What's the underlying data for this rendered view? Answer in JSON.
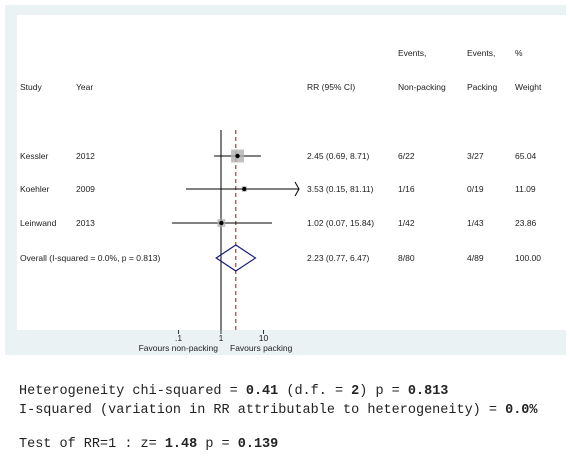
{
  "chart_data": {
    "type": "forest",
    "headers": {
      "study": "Study",
      "year": "Year",
      "ci": "RR (95% CI)",
      "events_a_top": "Events,",
      "events_a_bottom": "Non-packing",
      "events_b_top": "Events,",
      "events_b_bottom": "Packing",
      "weight_top": "%",
      "weight_bottom": "Weight"
    },
    "studies": [
      {
        "study": "Kessler",
        "year": "2012",
        "rr": 2.45,
        "lo": 0.69,
        "hi": 8.71,
        "ci_text": "2.45 (0.69, 8.71)",
        "events_nonpacking": "6/22",
        "events_packing": "3/27",
        "weight": "65.04"
      },
      {
        "study": "Koehler",
        "year": "2009",
        "rr": 3.53,
        "lo": 0.15,
        "hi": 81.11,
        "ci_text": "3.53 (0.15, 81.11)",
        "events_nonpacking": "1/16",
        "events_packing": "0/19",
        "weight": "11.09",
        "clipped_high": true
      },
      {
        "study": "Leinwand",
        "year": "2013",
        "rr": 1.02,
        "lo": 0.07,
        "hi": 15.84,
        "ci_text": "1.02 (0.07, 15.84)",
        "events_nonpacking": "1/42",
        "events_packing": "1/43",
        "weight": "23.86"
      }
    ],
    "overall": {
      "label": "Overall  (I-squared = 0.0%, p = 0.813)",
      "rr": 2.23,
      "lo": 0.77,
      "hi": 6.47,
      "ci_text": "2.23 (0.77, 6.47)",
      "events_nonpacking": "8/80",
      "events_packing": "4/89",
      "weight": "100.00"
    },
    "x_axis": {
      "scale": "log",
      "ticks": [
        {
          "value": 0.1,
          "label": ".1"
        },
        {
          "value": 1,
          "label": "1"
        },
        {
          "value": 10,
          "label": "10"
        }
      ],
      "left_label": "Favours non-packing",
      "right_label": "Favours packing"
    },
    "reference_line": 1,
    "colors": {
      "overall_diamond": "#1a1a7a",
      "overall_line": "#8b1a1a",
      "weight_box": "#b0b0b0",
      "panel_bg": "#eaf2f3"
    }
  },
  "stats": {
    "line1_a": "Heterogeneity chi-squared = ",
    "line1_b": "0.41",
    "line1_c": " (d.f. = ",
    "line1_d": "2",
    "line1_e": ") p = ",
    "line1_f": "0.813",
    "line2_a": "I-squared (variation in RR attributable to heterogeneity) = ",
    "line2_b": "0.0%",
    "line3_a": "Test of RR=1 : z= ",
    "line3_b": "1.48",
    "line3_c": " p = ",
    "line3_d": "0.139"
  }
}
